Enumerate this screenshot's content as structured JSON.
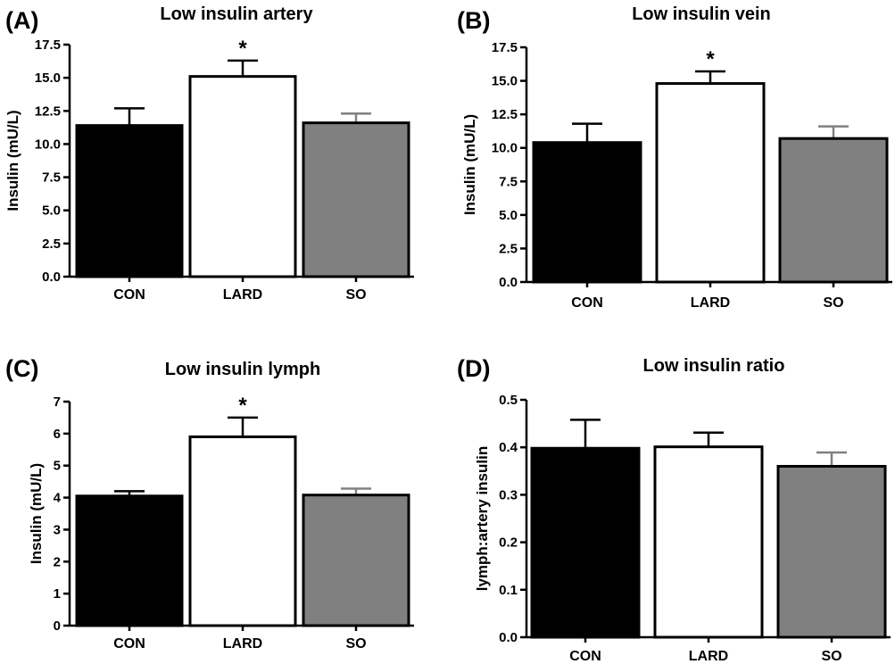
{
  "chart_data": [
    {
      "panel": "(A)",
      "type": "bar",
      "title": "Low insulin artery",
      "xlabel": "",
      "ylabel": "Insulin (mU/L)",
      "ylim": [
        0,
        17.5
      ],
      "yticks": [
        "0.0",
        "2.5",
        "5.0",
        "7.5",
        "10.0",
        "12.5",
        "15.0",
        "17.5"
      ],
      "categories": [
        "CON",
        "LARD",
        "SO"
      ],
      "values": [
        11.4,
        15.1,
        11.6
      ],
      "errors": [
        1.3,
        1.2,
        0.7
      ],
      "bar_colors": [
        "#000000",
        "#ffffff",
        "#808080"
      ],
      "significance": [
        "",
        "*",
        ""
      ],
      "grid": false
    },
    {
      "panel": "(B)",
      "type": "bar",
      "title": "Low insulin vein",
      "xlabel": "",
      "ylabel": "Insulin (mU/L)",
      "ylim": [
        0,
        17.5
      ],
      "yticks": [
        "0.0",
        "2.5",
        "5.0",
        "7.5",
        "10.0",
        "12.5",
        "15.0",
        "17.5"
      ],
      "categories": [
        "CON",
        "LARD",
        "SO"
      ],
      "values": [
        10.4,
        14.8,
        10.7
      ],
      "errors": [
        1.4,
        0.9,
        0.9
      ],
      "bar_colors": [
        "#000000",
        "#ffffff",
        "#808080"
      ],
      "significance": [
        "",
        "*",
        ""
      ],
      "grid": false
    },
    {
      "panel": "(C)",
      "type": "bar",
      "title": "Low insulin lymph",
      "xlabel": "",
      "ylabel": "Insulin (mU/L)",
      "ylim": [
        0,
        7
      ],
      "yticks": [
        "0",
        "1",
        "2",
        "3",
        "4",
        "5",
        "6",
        "7"
      ],
      "categories": [
        "CON",
        "LARD",
        "SO"
      ],
      "values": [
        4.05,
        5.9,
        4.08
      ],
      "errors": [
        0.15,
        0.6,
        0.2
      ],
      "bar_colors": [
        "#000000",
        "#ffffff",
        "#808080"
      ],
      "significance": [
        "",
        "*",
        ""
      ],
      "grid": false
    },
    {
      "panel": "(D)",
      "type": "bar",
      "title": "Low insulin ratio",
      "xlabel": "",
      "ylabel": "lymph:artery insulin",
      "ylim": [
        0,
        0.5
      ],
      "yticks": [
        "0.0",
        "0.1",
        "0.2",
        "0.3",
        "0.4",
        "0.5"
      ],
      "categories": [
        "CON",
        "LARD",
        "SO"
      ],
      "values": [
        0.398,
        0.401,
        0.36
      ],
      "errors": [
        0.06,
        0.03,
        0.029
      ],
      "bar_colors": [
        "#000000",
        "#ffffff",
        "#808080"
      ],
      "significance": [
        "",
        "",
        ""
      ],
      "grid": false
    }
  ]
}
